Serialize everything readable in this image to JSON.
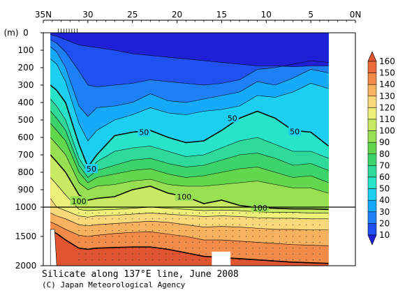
{
  "chart_data": {
    "type": "heatmap",
    "title": "Silicate along 137°E line, June 2008",
    "credit": "(C) Japan Meteorological Agency",
    "x_axis": {
      "ticks": [
        35,
        30,
        25,
        20,
        15,
        10,
        5,
        0
      ],
      "tick_labels": [
        "35N",
        "30",
        "25",
        "20",
        "15",
        "10",
        "5",
        "0N"
      ],
      "range": [
        35,
        0
      ]
    },
    "y_axis": {
      "unit_label": "(m)",
      "upper_ticks": [
        0,
        100,
        200,
        300,
        400,
        500,
        600,
        700,
        800,
        900,
        1000
      ],
      "lower_ticks": [
        1500,
        2000
      ],
      "tick_labels": [
        "0",
        "100",
        "200",
        "300",
        "400",
        "500",
        "600",
        "700",
        "800",
        "900",
        "1000",
        "1500",
        "2000"
      ],
      "range": [
        0,
        2000
      ],
      "scale_break_depth": 1000
    },
    "data_extent_lat": [
      34.2,
      3.0
    ],
    "colorbar": {
      "levels": [
        10,
        20,
        30,
        40,
        50,
        60,
        70,
        80,
        90,
        100,
        110,
        120,
        130,
        140,
        150,
        160
      ],
      "labels": [
        "160",
        "150",
        "140",
        "130",
        "120",
        "110",
        "100",
        "90",
        "80",
        "70",
        "60",
        "50",
        "40",
        "30",
        "20",
        "10"
      ],
      "colors": [
        "#1f1fd6",
        "#2050f0",
        "#1e7ff7",
        "#15aaf7",
        "#1ccff0",
        "#27e3c8",
        "#2ed99a",
        "#3cd36b",
        "#62d64d",
        "#98df52",
        "#c7ea62",
        "#eef07a",
        "#f8d97a",
        "#f6b25e",
        "#f28b49",
        "#ec6a3b",
        "#e0542f"
      ]
    },
    "contour_labels": [
      {
        "text": "50",
        "lat": 29.6,
        "depth": 780
      },
      {
        "text": "50",
        "lat": 23.7,
        "depth": 570
      },
      {
        "text": "50",
        "lat": 13.8,
        "depth": 490
      },
      {
        "text": "50",
        "lat": 6.8,
        "depth": 565
      },
      {
        "text": "100",
        "lat": 31.0,
        "depth": 965
      },
      {
        "text": "100",
        "lat": 19.2,
        "depth": 940
      },
      {
        "text": "100",
        "lat": 10.7,
        "depth": 1010
      }
    ],
    "contours": [
      {
        "level": 10,
        "points": [
          [
            34.2,
            10
          ],
          [
            33.5,
            20
          ],
          [
            32.5,
            40
          ],
          [
            31,
            70
          ],
          [
            29,
            85
          ],
          [
            27,
            100
          ],
          [
            25,
            120
          ],
          [
            23,
            130
          ],
          [
            21,
            140
          ],
          [
            19,
            150
          ],
          [
            17,
            160
          ],
          [
            15,
            170
          ],
          [
            13,
            180
          ],
          [
            11,
            190
          ],
          [
            9,
            190
          ],
          [
            7,
            195
          ],
          [
            5,
            190
          ],
          [
            3,
            190
          ]
        ]
      },
      {
        "level": 20,
        "points": [
          [
            34.2,
            40
          ],
          [
            33.5,
            60
          ],
          [
            32.5,
            110
          ],
          [
            31,
            220
          ],
          [
            30,
            300
          ],
          [
            29,
            310
          ],
          [
            27,
            300
          ],
          [
            25,
            290
          ],
          [
            23,
            270
          ],
          [
            21,
            280
          ],
          [
            19,
            290
          ],
          [
            17,
            300
          ],
          [
            15,
            290
          ],
          [
            13,
            270
          ],
          [
            11,
            210
          ],
          [
            9,
            200
          ],
          [
            7,
            180
          ],
          [
            5,
            160
          ],
          [
            3,
            170
          ]
        ]
      },
      {
        "level": 30,
        "points": [
          [
            34.2,
            80
          ],
          [
            33.5,
            110
          ],
          [
            32.5,
            200
          ],
          [
            31,
            420
          ],
          [
            30,
            480
          ],
          [
            29,
            430
          ],
          [
            27,
            420
          ],
          [
            25,
            400
          ],
          [
            23,
            350
          ],
          [
            21,
            390
          ],
          [
            19,
            400
          ],
          [
            17,
            380
          ],
          [
            15,
            360
          ],
          [
            13,
            340
          ],
          [
            11,
            280
          ],
          [
            9,
            300
          ],
          [
            7,
            260
          ],
          [
            5,
            210
          ],
          [
            3,
            230
          ]
        ]
      },
      {
        "level": 40,
        "points": [
          [
            34.2,
            150
          ],
          [
            33.5,
            180
          ],
          [
            32.5,
            280
          ],
          [
            31,
            520
          ],
          [
            30,
            620
          ],
          [
            29,
            560
          ],
          [
            27,
            500
          ],
          [
            25,
            470
          ],
          [
            23,
            430
          ],
          [
            21,
            460
          ],
          [
            19,
            470
          ],
          [
            17,
            450
          ],
          [
            15,
            440
          ],
          [
            13,
            420
          ],
          [
            11,
            360
          ],
          [
            9,
            370
          ],
          [
            7,
            340
          ],
          [
            5,
            290
          ],
          [
            3,
            320
          ]
        ]
      },
      {
        "level": 50,
        "points": [
          [
            34.2,
            300
          ],
          [
            33.5,
            330
          ],
          [
            32.5,
            400
          ],
          [
            31,
            640
          ],
          [
            30,
            770
          ],
          [
            29,
            700
          ],
          [
            27,
            590
          ],
          [
            25,
            570
          ],
          [
            23,
            560
          ],
          [
            21,
            600
          ],
          [
            19,
            630
          ],
          [
            17,
            620
          ],
          [
            15,
            560
          ],
          [
            13,
            490
          ],
          [
            11,
            450
          ],
          [
            9,
            490
          ],
          [
            7,
            560
          ],
          [
            5,
            570
          ],
          [
            3,
            650
          ]
        ]
      },
      {
        "level": 60,
        "points": [
          [
            34.2,
            380
          ],
          [
            33.5,
            420
          ],
          [
            32.5,
            500
          ],
          [
            31,
            720
          ],
          [
            30,
            800
          ],
          [
            29,
            740
          ],
          [
            27,
            680
          ],
          [
            25,
            660
          ],
          [
            23,
            650
          ],
          [
            21,
            680
          ],
          [
            19,
            710
          ],
          [
            17,
            700
          ],
          [
            15,
            660
          ],
          [
            13,
            620
          ],
          [
            11,
            600
          ],
          [
            9,
            640
          ],
          [
            7,
            680
          ],
          [
            5,
            680
          ],
          [
            3,
            720
          ]
        ]
      },
      {
        "level": 70,
        "points": [
          [
            34.2,
            450
          ],
          [
            33.5,
            490
          ],
          [
            32.5,
            560
          ],
          [
            31,
            760
          ],
          [
            30,
            830
          ],
          [
            29,
            790
          ],
          [
            27,
            760
          ],
          [
            25,
            730
          ],
          [
            23,
            720
          ],
          [
            21,
            750
          ],
          [
            19,
            770
          ],
          [
            17,
            760
          ],
          [
            15,
            730
          ],
          [
            13,
            700
          ],
          [
            11,
            690
          ],
          [
            9,
            720
          ],
          [
            7,
            760
          ],
          [
            5,
            750
          ],
          [
            3,
            790
          ]
        ]
      },
      {
        "level": 80,
        "points": [
          [
            34.2,
            520
          ],
          [
            33.5,
            560
          ],
          [
            32.5,
            620
          ],
          [
            31,
            800
          ],
          [
            30,
            860
          ],
          [
            29,
            830
          ],
          [
            27,
            810
          ],
          [
            25,
            790
          ],
          [
            23,
            780
          ],
          [
            21,
            810
          ],
          [
            19,
            830
          ],
          [
            17,
            820
          ],
          [
            15,
            800
          ],
          [
            13,
            780
          ],
          [
            11,
            770
          ],
          [
            9,
            800
          ],
          [
            7,
            830
          ],
          [
            5,
            820
          ],
          [
            3,
            860
          ]
        ]
      },
      {
        "level": 90,
        "points": [
          [
            34.2,
            600
          ],
          [
            33.5,
            640
          ],
          [
            32.5,
            700
          ],
          [
            31,
            860
          ],
          [
            30,
            900
          ],
          [
            29,
            880
          ],
          [
            27,
            870
          ],
          [
            25,
            850
          ],
          [
            23,
            840
          ],
          [
            21,
            870
          ],
          [
            19,
            880
          ],
          [
            17,
            880
          ],
          [
            15,
            870
          ],
          [
            13,
            860
          ],
          [
            11,
            850
          ],
          [
            9,
            870
          ],
          [
            7,
            890
          ],
          [
            5,
            890
          ],
          [
            3,
            920
          ]
        ]
      },
      {
        "level": 100,
        "points": [
          [
            34.2,
            700
          ],
          [
            33.5,
            740
          ],
          [
            32.5,
            800
          ],
          [
            31,
            930
          ],
          [
            30,
            960
          ],
          [
            29,
            950
          ],
          [
            27,
            940
          ],
          [
            25,
            900
          ],
          [
            23,
            880
          ],
          [
            21,
            920
          ],
          [
            19,
            940
          ],
          [
            17,
            980
          ],
          [
            15,
            960
          ],
          [
            13,
            990
          ],
          [
            11,
            1010
          ],
          [
            9,
            1020
          ],
          [
            7,
            1030
          ],
          [
            5,
            1030
          ],
          [
            3,
            1040
          ]
        ]
      },
      {
        "level": 110,
        "points": [
          [
            34.2,
            830
          ],
          [
            33.5,
            870
          ],
          [
            32.5,
            930
          ],
          [
            31,
            1040
          ],
          [
            30,
            1060
          ],
          [
            29,
            1050
          ],
          [
            27,
            1040
          ],
          [
            25,
            1020
          ],
          [
            23,
            1000
          ],
          [
            21,
            1020
          ],
          [
            19,
            1040
          ],
          [
            17,
            1060
          ],
          [
            15,
            1050
          ],
          [
            13,
            1060
          ],
          [
            11,
            1080
          ],
          [
            9,
            1090
          ],
          [
            7,
            1090
          ],
          [
            5,
            1100
          ],
          [
            3,
            1100
          ]
        ]
      },
      {
        "level": 120,
        "points": [
          [
            34.2,
            950
          ],
          [
            33.5,
            1000
          ],
          [
            32.5,
            1060
          ],
          [
            31,
            1150
          ],
          [
            30,
            1170
          ],
          [
            29,
            1150
          ],
          [
            27,
            1140
          ],
          [
            25,
            1120
          ],
          [
            23,
            1100
          ],
          [
            21,
            1120
          ],
          [
            19,
            1140
          ],
          [
            17,
            1160
          ],
          [
            15,
            1150
          ],
          [
            13,
            1160
          ],
          [
            11,
            1180
          ],
          [
            9,
            1190
          ],
          [
            7,
            1190
          ],
          [
            5,
            1200
          ],
          [
            3,
            1200
          ]
        ]
      },
      {
        "level": 130,
        "points": [
          [
            34.2,
            1100
          ],
          [
            33.5,
            1150
          ],
          [
            32.5,
            1200
          ],
          [
            31,
            1300
          ],
          [
            30,
            1320
          ],
          [
            29,
            1300
          ],
          [
            27,
            1280
          ],
          [
            25,
            1260
          ],
          [
            23,
            1240
          ],
          [
            21,
            1260
          ],
          [
            19,
            1300
          ],
          [
            17,
            1340
          ],
          [
            15,
            1330
          ],
          [
            13,
            1340
          ],
          [
            11,
            1360
          ],
          [
            9,
            1380
          ],
          [
            7,
            1380
          ],
          [
            5,
            1390
          ],
          [
            3,
            1390
          ]
        ]
      },
      {
        "level": 140,
        "points": [
          [
            34.2,
            1250
          ],
          [
            33.5,
            1300
          ],
          [
            32.5,
            1380
          ],
          [
            31,
            1480
          ],
          [
            30,
            1500
          ],
          [
            29,
            1480
          ],
          [
            27,
            1450
          ],
          [
            25,
            1430
          ],
          [
            23,
            1420
          ],
          [
            21,
            1460
          ],
          [
            19,
            1500
          ],
          [
            17,
            1560
          ],
          [
            15,
            1560
          ],
          [
            13,
            1580
          ],
          [
            11,
            1600
          ],
          [
            9,
            1620
          ],
          [
            7,
            1640
          ],
          [
            5,
            1650
          ],
          [
            3,
            1660
          ]
        ]
      },
      {
        "level": 150,
        "points": [
          [
            34.2,
            1400
          ],
          [
            33.5,
            1450
          ],
          [
            32.5,
            1560
          ],
          [
            31,
            1700
          ],
          [
            30,
            1720
          ],
          [
            29,
            1700
          ],
          [
            27,
            1690
          ],
          [
            25,
            1680
          ],
          [
            23,
            1680
          ],
          [
            21,
            1720
          ],
          [
            19,
            1780
          ],
          [
            17,
            1840
          ],
          [
            15,
            1860
          ],
          [
            13,
            1880
          ],
          [
            11,
            1900
          ],
          [
            9,
            1920
          ],
          [
            7,
            1940
          ],
          [
            5,
            1950
          ],
          [
            3,
            1960
          ]
        ]
      }
    ]
  }
}
